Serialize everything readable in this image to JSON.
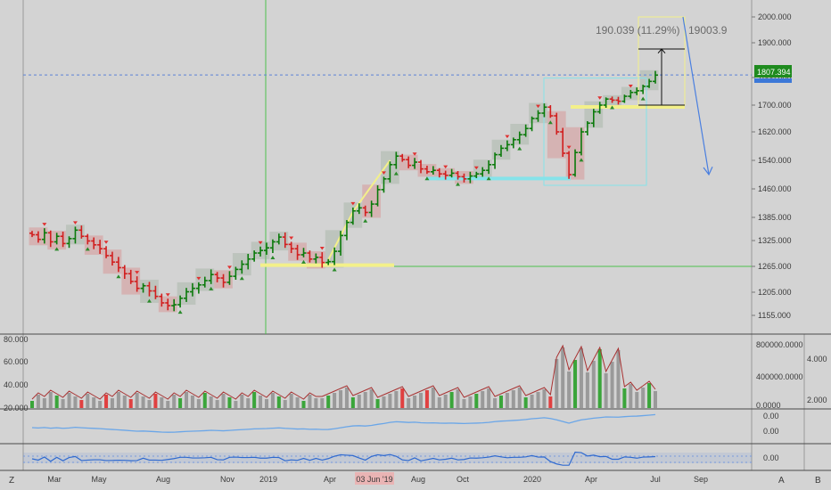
{
  "toolbar": {
    "left_btn": "Z",
    "scale_a": "A",
    "scale_b": "B"
  },
  "chart_data": {
    "type": "candlestick",
    "symbol_price_tag": "1807.394",
    "measure_label_1": "190.039 (11.29%)",
    "measure_label_2": "19003.9",
    "price_axis": {
      "ticks": [
        "2000.000",
        "1900.000",
        "1800.000",
        "1700.000",
        "1620.000",
        "1540.000",
        "1460.000",
        "1385.000",
        "1325.000",
        "1265.000",
        "1205.000",
        "1155.000"
      ],
      "range": [
        1130,
        2010
      ]
    },
    "time_axis": {
      "labels": [
        "Mar",
        "May",
        "Aug",
        "Nov",
        "2019",
        "Apr",
        "Aug",
        "Oct",
        "2020",
        "Apr",
        "Jul",
        "Sep"
      ],
      "highlight_label": "03 Jun '19"
    },
    "horizontal_line_level": 1265,
    "current_price_line": 1807.394,
    "price_series": [
      1340,
      1328,
      1345,
      1322,
      1336,
      1318,
      1330,
      1352,
      1336,
      1324,
      1315,
      1306,
      1290,
      1275,
      1262,
      1248,
      1230,
      1214,
      1220,
      1208,
      1196,
      1182,
      1176,
      1178,
      1192,
      1206,
      1214,
      1222,
      1232,
      1246,
      1238,
      1228,
      1242,
      1258,
      1270,
      1282,
      1296,
      1302,
      1308,
      1322,
      1334,
      1316,
      1306,
      1292,
      1296,
      1282,
      1286,
      1274,
      1276,
      1300,
      1338,
      1372,
      1402,
      1410,
      1398,
      1420,
      1458,
      1488,
      1528,
      1552,
      1542,
      1526,
      1535,
      1516,
      1508,
      1512,
      1502,
      1498,
      1504,
      1494,
      1488,
      1496,
      1502,
      1512,
      1528,
      1556,
      1574,
      1584,
      1598,
      1612,
      1630,
      1660,
      1676,
      1694,
      1668,
      1620,
      1560,
      1500,
      1562,
      1620,
      1646,
      1680,
      1700,
      1722,
      1718,
      1714,
      1732,
      1746,
      1752,
      1768,
      1786,
      1807
    ],
    "volume_panel": {
      "left_ticks": [
        "80.000",
        "60.000",
        "40.000",
        "20.000"
      ],
      "right_ticks": [
        "800000.0000",
        "400000.0000",
        "0.0000"
      ],
      "far_right_ticks": [
        "4.000",
        "2.000"
      ],
      "range": [
        20,
        80
      ]
    },
    "indicator_1": {
      "ticks": [
        "0.00",
        "0.00"
      ]
    },
    "indicator_2": {
      "ticks": [
        "0.00"
      ]
    }
  }
}
